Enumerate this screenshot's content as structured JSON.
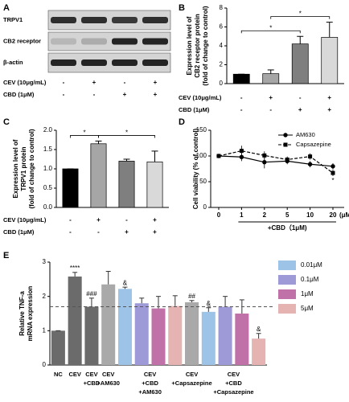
{
  "chart_data": [
    {
      "type": "blot",
      "panel": "A",
      "rows": [
        "TRPV1",
        "CB2 receptor",
        "β-actin"
      ],
      "treatments": [
        {
          "name": "CEV (10μg/mL)",
          "signs": [
            "-",
            "+",
            "-",
            "+"
          ]
        },
        {
          "name": "CBD (1μM)",
          "signs": [
            "-",
            "-",
            "+",
            "+"
          ]
        }
      ]
    },
    {
      "type": "bar",
      "panel": "B",
      "ylabel": [
        "Expression level of",
        "CB2 receptor protein",
        "(fold of change to control)"
      ],
      "values": [
        1.0,
        1.05,
        4.2,
        4.9
      ],
      "errors": [
        0,
        0.4,
        0.8,
        1.6
      ],
      "colors": [
        "#000000",
        "#a6a6a6",
        "#7f7f7f",
        "#d9d9d9"
      ],
      "ylim": [
        0,
        8
      ],
      "yticks": [
        0,
        2,
        4,
        6,
        8
      ],
      "significance": [
        {
          "from": 0,
          "to": 2,
          "label": "*"
        },
        {
          "from": 1,
          "to": 3,
          "label": "*"
        }
      ],
      "treatments": [
        {
          "name": "CEV (10μg/mL)",
          "signs": [
            "-",
            "+",
            "-",
            "+"
          ]
        },
        {
          "name": "CBD (1μM)",
          "signs": [
            "-",
            "-",
            "+",
            "+"
          ]
        }
      ]
    },
    {
      "type": "bar",
      "panel": "C",
      "ylabel": [
        "Expression level of",
        "TRPV1 protein",
        "(fold of change to control)"
      ],
      "values": [
        1.0,
        1.65,
        1.2,
        1.18
      ],
      "errors": [
        0,
        0.07,
        0.05,
        0.28
      ],
      "colors": [
        "#000000",
        "#a6a6a6",
        "#7f7f7f",
        "#d9d9d9"
      ],
      "ylim": [
        0,
        2
      ],
      "yticks": [
        {
          "value": 0,
          "label": "0.0"
        },
        0.5,
        {
          "value": 1,
          "label": "1.0"
        },
        1.5,
        {
          "value": 2,
          "label": "2.0"
        }
      ],
      "significance": [
        {
          "from": 0,
          "to": 1,
          "label": "*"
        },
        {
          "from": 1,
          "to": 3,
          "label": "*"
        }
      ],
      "treatments": [
        {
          "name": "CEV (10μg/mL)",
          "signs": [
            "-",
            "+",
            "-",
            "+"
          ]
        },
        {
          "name": "CBD (1μM)",
          "signs": [
            "-",
            "-",
            "+",
            "+"
          ]
        }
      ]
    },
    {
      "type": "line",
      "panel": "D",
      "ylabel": "Cell viability (% of control)",
      "categories": [
        "0",
        "1",
        "2",
        "5",
        "10",
        "20"
      ],
      "xunit": "(μM)",
      "xlabel": "+CBD（1μM)",
      "ylim": [
        0,
        150
      ],
      "yticks": [
        0,
        50,
        100,
        150
      ],
      "series": [
        {
          "name": "AM630",
          "color": "#000000",
          "line_style": "solid",
          "marker": "circle",
          "values": [
            100,
            98,
            88,
            90,
            84,
            80
          ],
          "errors": [
            0,
            8,
            12,
            6,
            6,
            6
          ],
          "point_labels": [
            null,
            null,
            null,
            null,
            null,
            null
          ]
        },
        {
          "name": "Capsazepine",
          "color": "#000000",
          "line_style": "dashed",
          "marker": "square",
          "values": [
            100,
            110,
            101,
            93,
            99,
            67
          ],
          "errors": [
            0,
            10,
            8,
            6,
            6,
            6
          ],
          "point_labels": [
            null,
            null,
            null,
            null,
            null,
            "*"
          ]
        }
      ]
    },
    {
      "type": "grouped-bar",
      "panel": "E",
      "ylabel": [
        "Relative TNF-a",
        "mRNA expression"
      ],
      "ylim": [
        0,
        3
      ],
      "yticks": [
        0,
        1,
        2,
        3
      ],
      "reference_line": 1.7,
      "legend": [
        {
          "name": "0.01μM",
          "color": "#9dc3e6"
        },
        {
          "name": "0.1μM",
          "color": "#9e9ad8"
        },
        {
          "name": "1μM",
          "color": "#c071a8"
        },
        {
          "name": "5μM",
          "color": "#e6b3b3"
        }
      ],
      "groups": [
        {
          "label": [
            "NC"
          ],
          "bars": [
            {
              "value": 1.0,
              "error": 0,
              "color": "#6b6b6b"
            }
          ]
        },
        {
          "label": [
            "CEV"
          ],
          "bars": [
            {
              "value": 2.58,
              "error": 0.12,
              "color": "#6b6b6b",
              "annotation": "****"
            }
          ]
        },
        {
          "label": [
            "CEV",
            "+CBD"
          ],
          "bars": [
            {
              "value": 1.7,
              "error": 0.25,
              "color": "#6b6b6b",
              "annotation": "###"
            }
          ]
        },
        {
          "label": [
            "CEV",
            "+AM630"
          ],
          "bars": [
            {
              "value": 2.35,
              "error": 0.38,
              "color": "#a9a9a9"
            }
          ]
        },
        {
          "label": [
            "CEV",
            "+CBD",
            "+AM630"
          ],
          "bars": [
            {
              "value": 2.22,
              "error": 0.05,
              "color": "#9dc3e6",
              "annotation": "&"
            },
            {
              "value": 1.8,
              "error": 0.15,
              "color": "#9e9ad8"
            },
            {
              "value": 1.65,
              "error": 0.35,
              "color": "#c071a8"
            },
            {
              "value": 1.72,
              "error": 0.3,
              "color": "#e6b3b3"
            }
          ]
        },
        {
          "label": [
            "CEV",
            "+Capsazepine"
          ],
          "bars": [
            {
              "value": 1.83,
              "error": 0.05,
              "color": "#a9a9a9",
              "annotation": "##"
            }
          ]
        },
        {
          "label": [
            "CEV",
            "+CBD",
            "+Capsazepine"
          ],
          "bars": [
            {
              "value": 1.55,
              "error": 0.12,
              "color": "#9dc3e6",
              "annotation": "&"
            },
            {
              "value": 1.7,
              "error": 0.3,
              "color": "#9e9ad8"
            },
            {
              "value": 1.5,
              "error": 0.4,
              "color": "#c071a8"
            },
            {
              "value": 0.77,
              "error": 0.15,
              "color": "#e6b3b3",
              "annotation": "&"
            }
          ]
        }
      ]
    }
  ]
}
